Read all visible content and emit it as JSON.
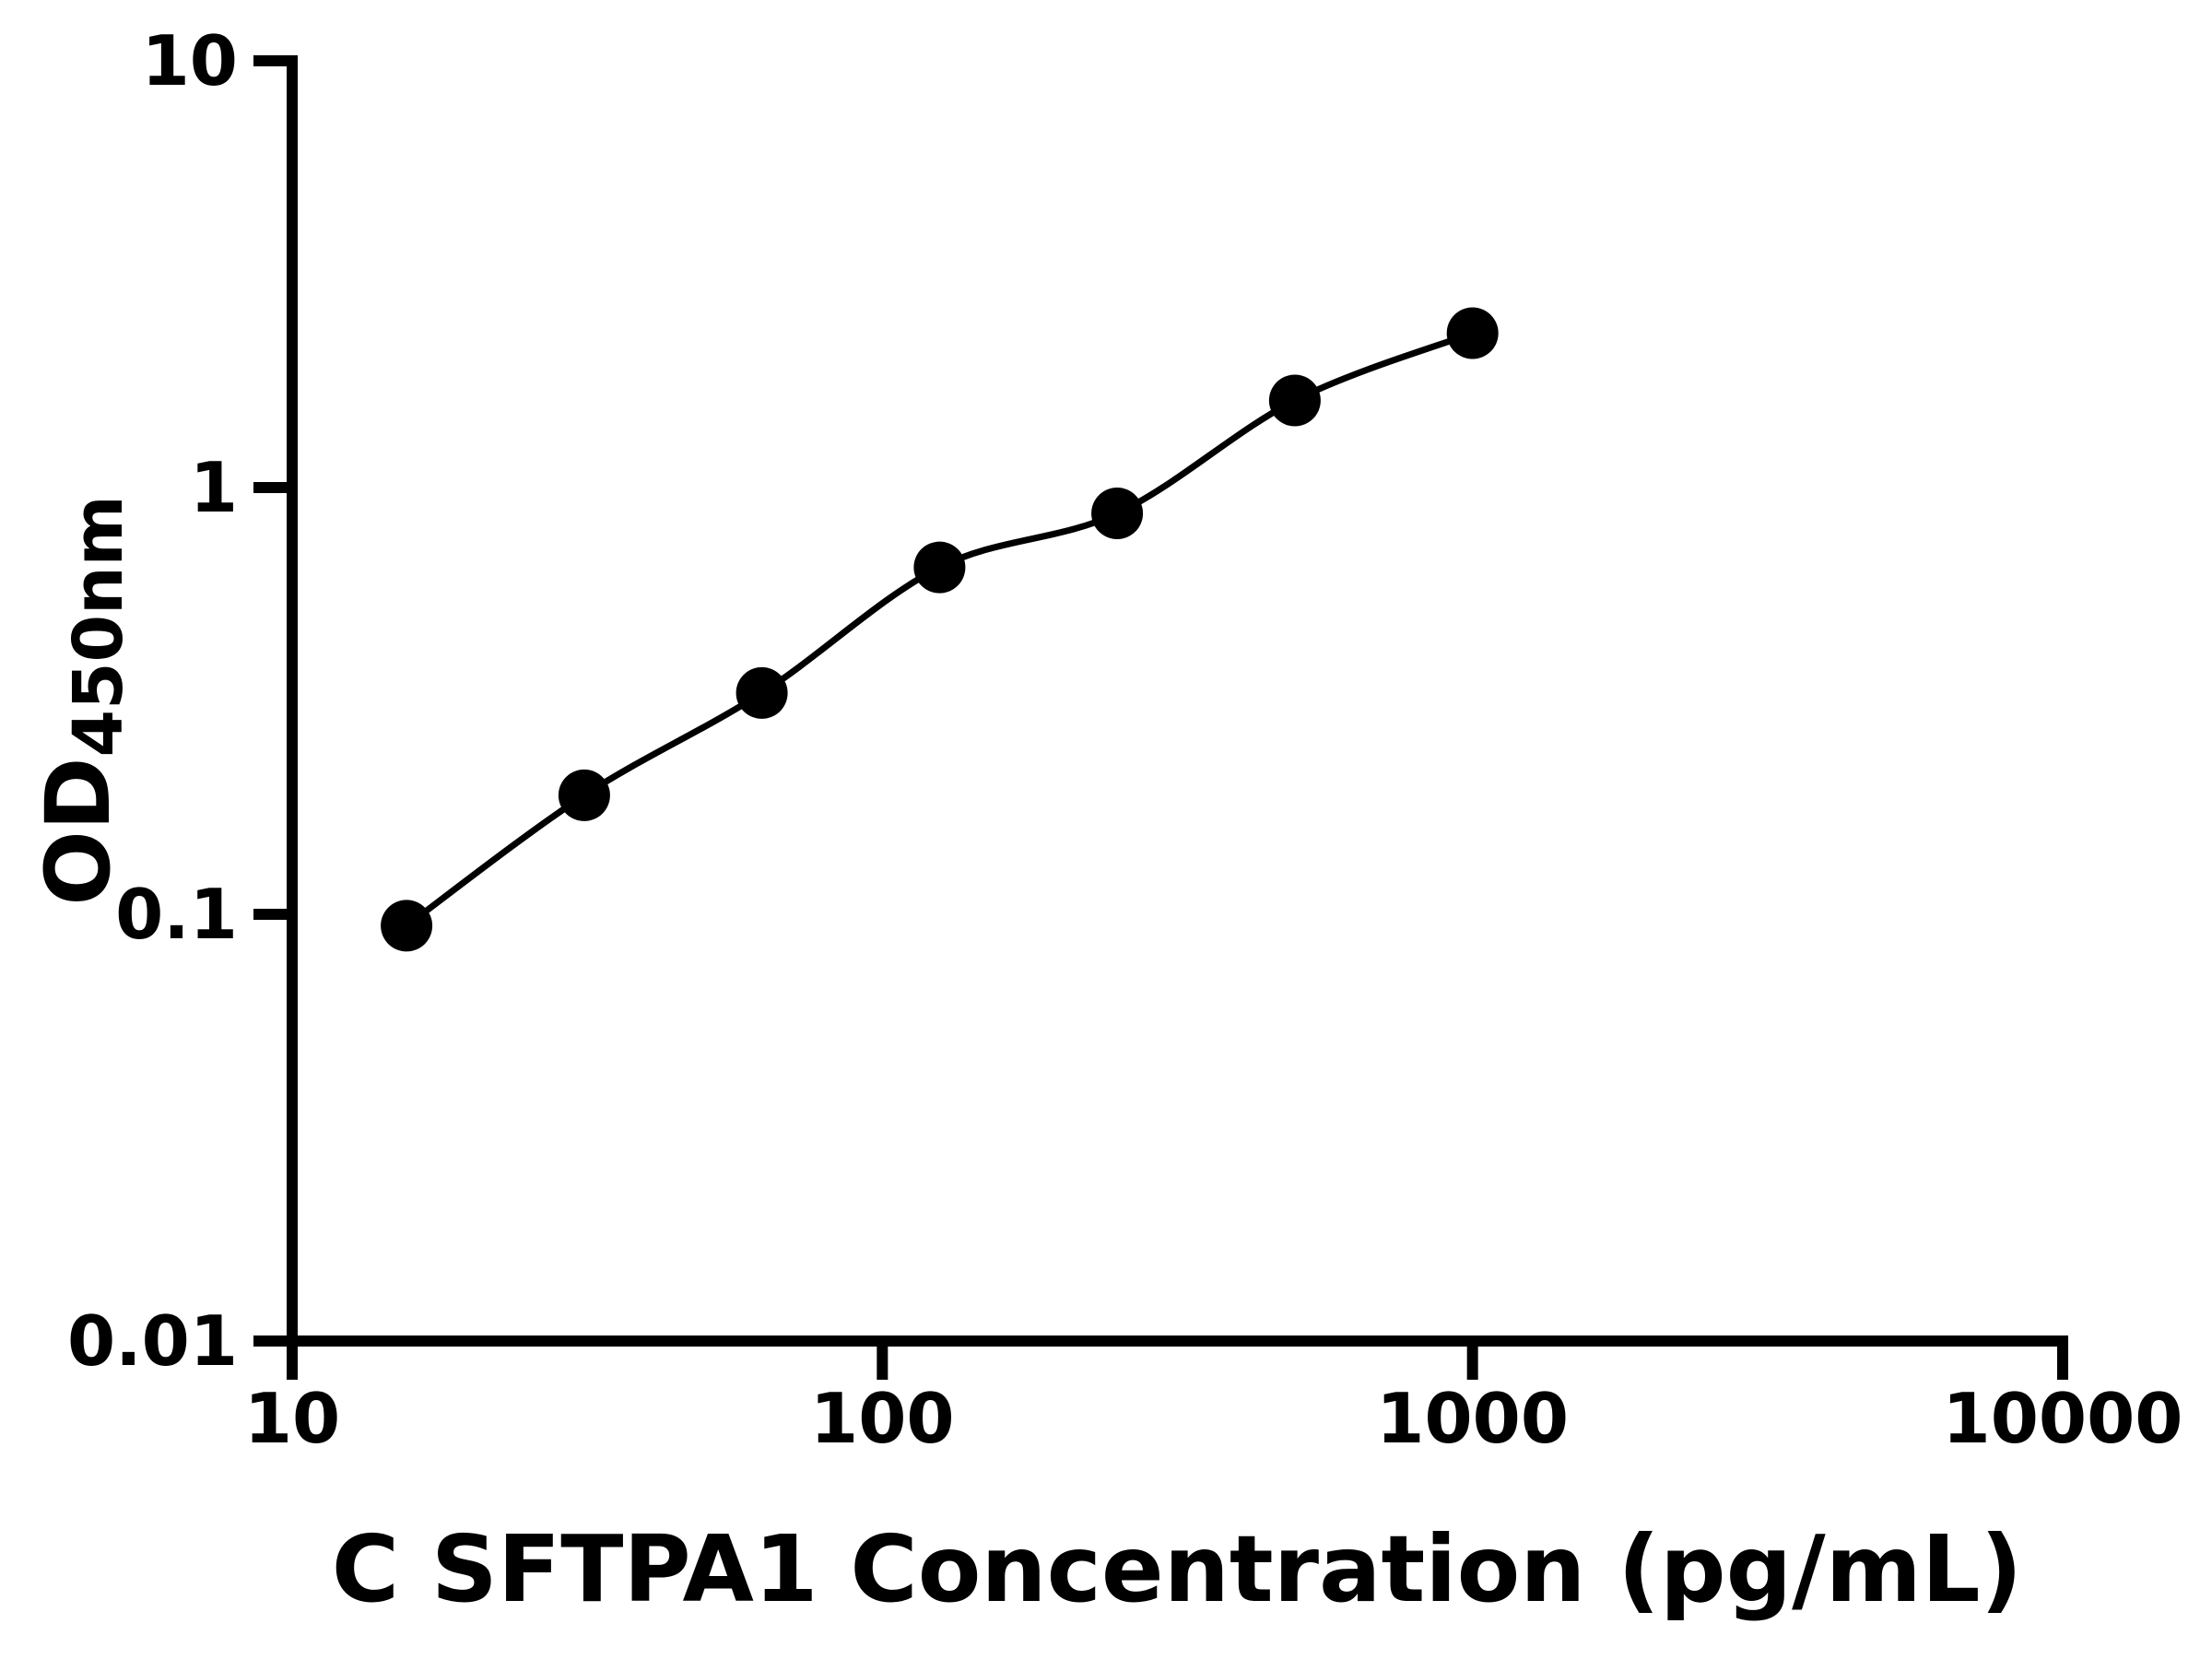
{
  "figure": {
    "background_color": "#ffffff",
    "ink_color": "#000000"
  },
  "chart_data": {
    "type": "scatter",
    "title": "",
    "xlabel": "C SFTPA1 Concentration (pg/mL)",
    "ylabel": "OD",
    "ylabel_sub": "450nm",
    "x_scale": "log",
    "y_scale": "log",
    "xlim": [
      10,
      10000
    ],
    "ylim": [
      0.01,
      10
    ],
    "x_tick_values": [
      10,
      100,
      1000,
      10000
    ],
    "x_tick_labels": [
      "10",
      "100",
      "1000",
      "10000"
    ],
    "y_tick_values": [
      0.01,
      0.1,
      1,
      10
    ],
    "y_tick_labels": [
      "0.01",
      "0.1",
      "1",
      "10"
    ],
    "grid": false,
    "legend": null,
    "series": [
      {
        "marker": "filled-circle",
        "marker_color": "#000000",
        "line": "smooth-fit",
        "line_color": "#000000",
        "x": [
          15.625,
          31.25,
          62.5,
          125,
          250,
          500,
          1000
        ],
        "y": [
          0.094,
          0.19,
          0.33,
          0.65,
          0.87,
          1.6,
          2.3
        ]
      }
    ]
  }
}
